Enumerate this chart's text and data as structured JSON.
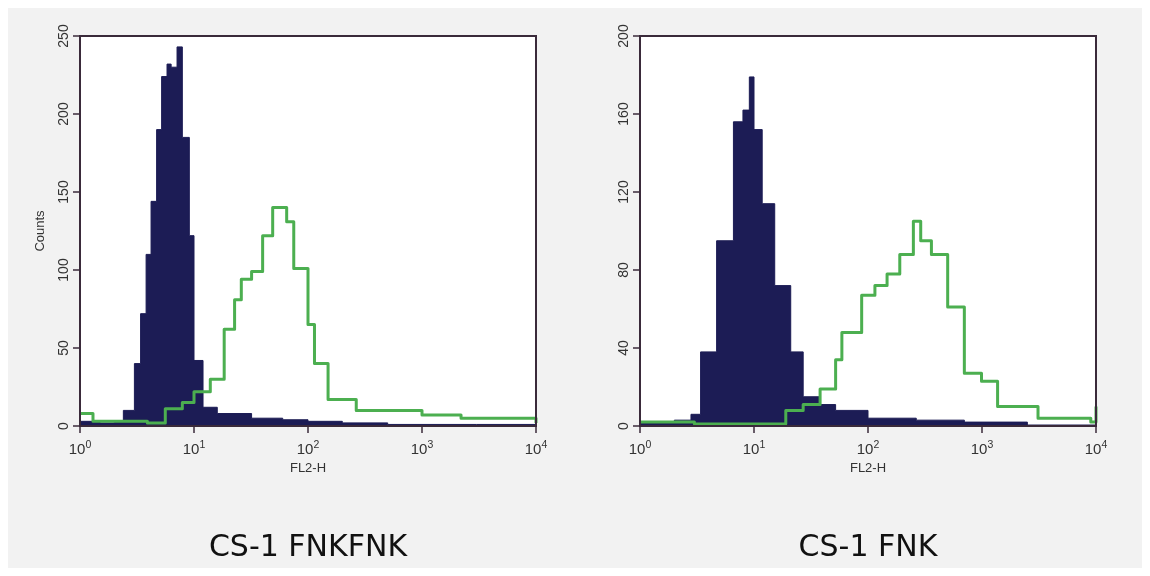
{
  "chart_data": [
    {
      "type": "area",
      "title": "CS-1 FNKFNK",
      "xlabel": "FL2-H",
      "ylabel": "Counts",
      "log": "x",
      "xlim": [
        1,
        10000
      ],
      "ylim": [
        0,
        250
      ],
      "xticks": [
        {
          "value": 1,
          "label": "10$^{0}$"
        },
        {
          "value": 10,
          "label": "10$^{1}$"
        },
        {
          "value": 100,
          "label": "10$^{2}$"
        },
        {
          "value": 1000,
          "label": "10$^{3}$"
        },
        {
          "value": 10000,
          "label": "10$^{4}$"
        }
      ],
      "yticks": [
        0,
        50,
        100,
        150,
        200,
        250
      ],
      "series": [
        {
          "color": "#1c1c55",
          "x": [
            1,
            1.5,
            2,
            2.4,
            3,
            3.4,
            3.8,
            4.2,
            4.7,
            5.2,
            5.8,
            6.3,
            7.1,
            7.9,
            9.1,
            10,
            12,
            16,
            32,
            60,
            100,
            200,
            500,
            1000,
            3000,
            10000
          ],
          "values": [
            3,
            2,
            3,
            10,
            40,
            72,
            110,
            144,
            190,
            224,
            232,
            230,
            243,
            185,
            122,
            42,
            12,
            8,
            5,
            4,
            3,
            2,
            1,
            1,
            1,
            0
          ]
        },
        {
          "type": "step",
          "color": "#4caf50",
          "x": [
            1,
            1.3,
            2,
            3,
            3.9,
            5.6,
            7.9,
            10,
            13.9,
            18.4,
            22.7,
            26,
            32,
            40,
            49,
            61,
            65,
            75,
            100,
            114,
            150,
            265,
            1000,
            2200,
            10000
          ],
          "values": [
            8,
            3,
            3,
            3,
            2,
            11,
            15,
            22,
            30,
            62,
            81,
            94,
            99,
            122,
            140,
            140,
            131,
            101,
            65,
            40,
            17,
            10,
            7,
            5,
            2
          ]
        }
      ]
    },
    {
      "type": "area",
      "title": "CS-1 FNK",
      "xlabel": "FL2-H",
      "log": "x",
      "xlim": [
        1,
        10000
      ],
      "ylim": [
        0,
        200
      ],
      "xticks": [
        {
          "value": 1,
          "label": "10$^{0}$"
        },
        {
          "value": 10,
          "label": "10$^{1}$"
        },
        {
          "value": 100,
          "label": "10$^{2}$"
        },
        {
          "value": 1000,
          "label": "10$^{3}$"
        },
        {
          "value": 10000,
          "label": "10$^{4}$"
        }
      ],
      "yticks": [
        0,
        40,
        80,
        120,
        160,
        200
      ],
      "series": [
        {
          "color": "#1c1c55",
          "x": [
            1,
            2,
            2.8,
            3.4,
            4.7,
            6.6,
            8,
            9.1,
            10,
            11.8,
            15.2,
            21,
            27,
            38,
            52,
            100,
            265,
            700,
            2500,
            10000
          ],
          "values": [
            2,
            3,
            6,
            38,
            95,
            156,
            162,
            179,
            152,
            114,
            72,
            38,
            15,
            11,
            8,
            4,
            3,
            2,
            0.5,
            0
          ]
        },
        {
          "type": "step",
          "color": "#4caf50",
          "x": [
            1,
            3,
            10,
            19,
            27,
            38,
            52,
            59,
            88,
            115,
            147,
            190,
            250,
            290,
            360,
            500,
            700,
            990,
            1370,
            3100,
            9000,
            10000
          ],
          "values": [
            2,
            1,
            1,
            8,
            11,
            19,
            34,
            48,
            67,
            72,
            78,
            88,
            105,
            95,
            88,
            61,
            27,
            23,
            10,
            4,
            2,
            10
          ]
        }
      ]
    }
  ]
}
